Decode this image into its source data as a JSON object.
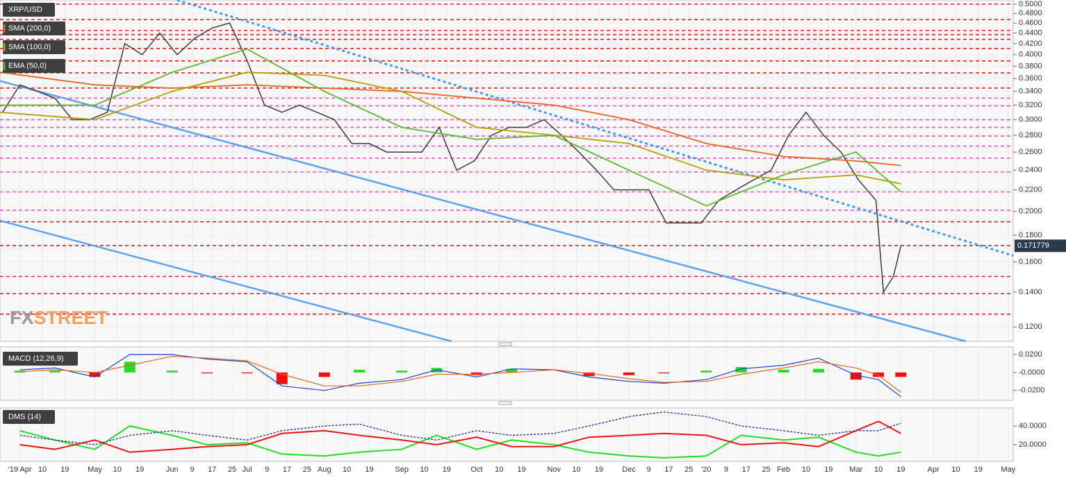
{
  "chart_data": [
    {
      "type": "line",
      "log_scale": true,
      "grid": true,
      "xlim": [
        "2019-03-24",
        "2020-05-03"
      ],
      "ylim": [
        0.1126,
        0.5093
      ],
      "yticks": [
        {
          "value": 0.5,
          "label": "0.5000"
        },
        {
          "value": 0.48,
          "label": "0.4800"
        },
        {
          "value": 0.46,
          "label": "0.4600"
        },
        {
          "value": 0.44,
          "label": "0.4400"
        },
        {
          "value": 0.42,
          "label": "0.4200"
        },
        {
          "value": 0.4,
          "label": "0.4000"
        },
        {
          "value": 0.38,
          "label": "0.3800"
        },
        {
          "value": 0.36,
          "label": "0.3600"
        },
        {
          "value": 0.34,
          "label": "0.3400"
        },
        {
          "value": 0.32,
          "label": "0.3200"
        },
        {
          "value": 0.3,
          "label": "0.3000"
        },
        {
          "value": 0.28,
          "label": "0.2800"
        },
        {
          "value": 0.26,
          "label": "0.2600"
        },
        {
          "value": 0.24,
          "label": "0.2400"
        },
        {
          "value": 0.22,
          "label": "0.2200"
        },
        {
          "value": 0.2,
          "label": "0.2000"
        },
        {
          "value": 0.18,
          "label": "0.1800"
        },
        {
          "value": 0.16,
          "label": "0.1600"
        },
        {
          "value": 0.14,
          "label": "0.1400"
        },
        {
          "value": 0.12,
          "label": "0.1200"
        }
      ],
      "series": [
        {
          "name": "XRP/USD",
          "color": "#3a3a3a",
          "x": [
            "2019-03-25",
            "2019-04-01",
            "2019-04-08",
            "2019-04-15",
            "2019-04-22",
            "2019-04-29",
            "2019-05-06",
            "2019-05-13",
            "2019-05-20",
            "2019-05-27",
            "2019-06-03",
            "2019-06-10",
            "2019-06-17",
            "2019-06-24",
            "2019-07-01",
            "2019-07-08",
            "2019-07-15",
            "2019-07-22",
            "2019-07-29",
            "2019-08-05",
            "2019-08-12",
            "2019-08-19",
            "2019-08-26",
            "2019-09-02",
            "2019-09-09",
            "2019-09-16",
            "2019-09-23",
            "2019-09-30",
            "2019-10-07",
            "2019-10-14",
            "2019-10-21",
            "2019-10-28",
            "2019-11-04",
            "2019-11-11",
            "2019-11-18",
            "2019-11-25",
            "2019-12-02",
            "2019-12-09",
            "2019-12-16",
            "2019-12-23",
            "2019-12-30",
            "2020-01-06",
            "2020-01-13",
            "2020-01-20",
            "2020-01-27",
            "2020-02-03",
            "2020-02-10",
            "2020-02-17",
            "2020-02-24",
            "2020-03-02",
            "2020-03-09",
            "2020-03-12",
            "2020-03-16",
            "2020-03-19"
          ],
          "values": [
            0.31,
            0.35,
            0.34,
            0.33,
            0.3,
            0.3,
            0.31,
            0.42,
            0.4,
            0.44,
            0.4,
            0.43,
            0.45,
            0.46,
            0.39,
            0.32,
            0.31,
            0.32,
            0.31,
            0.3,
            0.27,
            0.27,
            0.26,
            0.26,
            0.26,
            0.29,
            0.24,
            0.25,
            0.28,
            0.29,
            0.29,
            0.3,
            0.28,
            0.26,
            0.24,
            0.22,
            0.22,
            0.22,
            0.19,
            0.19,
            0.19,
            0.21,
            0.22,
            0.23,
            0.24,
            0.28,
            0.31,
            0.28,
            0.26,
            0.23,
            0.21,
            0.14,
            0.15,
            0.171779
          ]
        },
        {
          "name": "SMA (200,0)",
          "color": "#e8641b",
          "x": [
            "2019-03-24",
            "2019-05-01",
            "2019-06-01",
            "2019-07-01",
            "2019-08-01",
            "2019-09-01",
            "2019-10-01",
            "2019-11-01",
            "2019-12-01",
            "2020-01-01",
            "2020-02-01",
            "2020-03-01",
            "2020-03-19"
          ],
          "values": [
            0.37,
            0.35,
            0.345,
            0.35,
            0.345,
            0.34,
            0.33,
            0.32,
            0.3,
            0.27,
            0.255,
            0.25,
            0.245
          ]
        },
        {
          "name": "SMA (100,0)",
          "color": "#b59f00",
          "x": [
            "2019-03-24",
            "2019-05-01",
            "2019-06-01",
            "2019-07-01",
            "2019-08-01",
            "2019-09-01",
            "2019-10-01",
            "2019-11-01",
            "2019-12-01",
            "2020-01-01",
            "2020-02-01",
            "2020-03-01",
            "2020-03-19"
          ],
          "values": [
            0.31,
            0.3,
            0.34,
            0.37,
            0.365,
            0.34,
            0.29,
            0.28,
            0.27,
            0.24,
            0.23,
            0.235,
            0.226
          ]
        },
        {
          "name": "EMA (50,0)",
          "color": "#5cb82a",
          "x": [
            "2019-03-24",
            "2019-05-01",
            "2019-06-01",
            "2019-07-01",
            "2019-08-01",
            "2019-09-01",
            "2019-10-01",
            "2019-11-01",
            "2019-12-01",
            "2020-01-01",
            "2020-02-01",
            "2020-03-01",
            "2020-03-19"
          ],
          "values": [
            0.32,
            0.32,
            0.37,
            0.41,
            0.34,
            0.29,
            0.275,
            0.28,
            0.24,
            0.205,
            0.235,
            0.26,
            0.218
          ]
        }
      ],
      "levels": [
        {
          "color": "#e02020",
          "values": [
            0.5,
            0.467,
            0.445,
            0.437,
            0.428,
            0.411,
            0.389,
            0.369,
            0.345,
            0.191,
            0.172,
            0.15,
            0.139,
            0.127
          ]
        },
        {
          "color": "#f050c0",
          "values": [
            0.33,
            0.319,
            0.3,
            0.29,
            0.279,
            0.267,
            0.253,
            0.238,
            0.218,
            0.201
          ]
        }
      ],
      "trendlines": [
        {
          "color": "#3d9be9",
          "dashed": true,
          "x": [
            "2019-06-03",
            "2020-05-03"
          ],
          "values": [
            0.509,
            0.1645
          ]
        },
        {
          "color": "#5aa2ee",
          "dashed": false,
          "x": [
            "2019-03-24",
            "2020-04-14"
          ],
          "values": [
            0.356,
            0.1126
          ]
        },
        {
          "color": "#5aa2ee",
          "dashed": false,
          "x": [
            "2019-03-24",
            "2019-09-21"
          ],
          "values": [
            0.192,
            0.1126
          ]
        }
      ],
      "last_price": 0.171779,
      "watermark": [
        "FX",
        "STREET"
      ]
    },
    {
      "type": "macd",
      "title": "MACD (12,26,9)",
      "ylim": [
        -0.031,
        0.0285
      ],
      "yticks": [
        {
          "value": 0.02,
          "label": "0.0200"
        },
        {
          "value": 0,
          "label": "-0.0000"
        },
        {
          "value": -0.02,
          "label": "-0.0200"
        }
      ],
      "x": [
        "2019-04-01",
        "2019-04-15",
        "2019-05-01",
        "2019-05-15",
        "2019-06-01",
        "2019-06-15",
        "2019-07-01",
        "2019-07-15",
        "2019-08-01",
        "2019-08-15",
        "2019-09-01",
        "2019-09-15",
        "2019-10-01",
        "2019-10-15",
        "2019-11-01",
        "2019-11-15",
        "2019-12-01",
        "2019-12-15",
        "2020-01-01",
        "2020-01-15",
        "2020-02-01",
        "2020-02-15",
        "2020-03-01",
        "2020-03-10",
        "2020-03-19"
      ],
      "macd": {
        "color": "#1a3fd0",
        "values": [
          0.003,
          0.005,
          -0.005,
          0.02,
          0.02,
          0.015,
          0.012,
          -0.015,
          -0.02,
          -0.012,
          -0.008,
          0.003,
          -0.005,
          0.004,
          0.003,
          -0.005,
          -0.01,
          -0.012,
          -0.008,
          0.004,
          0.008,
          0.016,
          -0.003,
          -0.008,
          -0.027
        ]
      },
      "signal": {
        "color": "#e8641b",
        "values": [
          0.001,
          0.003,
          0.0,
          0.008,
          0.018,
          0.016,
          0.013,
          -0.002,
          -0.015,
          -0.015,
          -0.01,
          -0.002,
          -0.002,
          0.0,
          0.003,
          -0.001,
          -0.007,
          -0.011,
          -0.01,
          -0.002,
          0.005,
          0.012,
          0.005,
          -0.003,
          -0.022
        ]
      },
      "histogram": {
        "positive_color": "#22dd22",
        "negative_color": "#ee1111",
        "values": [
          0.002,
          0.002,
          -0.005,
          0.012,
          0.002,
          -0.001,
          -0.001,
          -0.013,
          -0.005,
          0.003,
          0.002,
          0.005,
          -0.003,
          0.004,
          0,
          -0.004,
          -0.003,
          -0.001,
          0.002,
          0.006,
          0.003,
          0.004,
          -0.008,
          -0.005,
          -0.005
        ]
      }
    },
    {
      "type": "dms",
      "title": "DMS (14)",
      "ylim": [
        2.2,
        59.3
      ],
      "yticks": [
        {
          "value": 40,
          "label": "40.0000"
        },
        {
          "value": 20,
          "label": "20.0000"
        }
      ],
      "x": [
        "2019-04-01",
        "2019-04-15",
        "2019-05-01",
        "2019-05-15",
        "2019-06-01",
        "2019-06-15",
        "2019-07-01",
        "2019-07-15",
        "2019-08-01",
        "2019-08-15",
        "2019-09-01",
        "2019-09-15",
        "2019-10-01",
        "2019-10-15",
        "2019-11-01",
        "2019-11-15",
        "2019-12-01",
        "2019-12-15",
        "2020-01-01",
        "2020-01-15",
        "2020-02-01",
        "2020-02-15",
        "2020-03-01",
        "2020-03-10",
        "2020-03-19"
      ],
      "series": [
        {
          "color": "#22dd22",
          "values": [
            35,
            25,
            15,
            40,
            30,
            20,
            22,
            10,
            8,
            12,
            15,
            30,
            15,
            25,
            20,
            12,
            8,
            6,
            8,
            30,
            25,
            28,
            12,
            8,
            12
          ]
        },
        {
          "color": "#ee1111",
          "values": [
            20,
            15,
            25,
            12,
            15,
            18,
            20,
            32,
            35,
            30,
            25,
            20,
            28,
            18,
            18,
            28,
            30,
            32,
            30,
            20,
            22,
            18,
            35,
            45,
            32
          ]
        },
        {
          "color": "#1a2a9a",
          "dashed": true,
          "values": [
            30,
            25,
            20,
            30,
            35,
            30,
            25,
            35,
            40,
            42,
            30,
            25,
            35,
            30,
            32,
            40,
            50,
            55,
            50,
            40,
            35,
            30,
            35,
            35,
            43
          ]
        }
      ],
      "xticks": [
        {
          "value": "2019-04-01",
          "label": "'19 Apr"
        },
        {
          "value": "2019-04-10",
          "label": "10"
        },
        {
          "value": "2019-04-19",
          "label": "19"
        },
        {
          "value": "2019-05-01",
          "label": "May"
        },
        {
          "value": "2019-05-10",
          "label": "10"
        },
        {
          "value": "2019-05-19",
          "label": "19"
        },
        {
          "value": "2019-06-01",
          "label": "Jun"
        },
        {
          "value": "2019-06-09",
          "label": "9"
        },
        {
          "value": "2019-06-17",
          "label": "17"
        },
        {
          "value": "2019-06-25",
          "label": "25"
        },
        {
          "value": "2019-07-01",
          "label": "Jul"
        },
        {
          "value": "2019-07-09",
          "label": "9"
        },
        {
          "value": "2019-07-17",
          "label": "17"
        },
        {
          "value": "2019-07-25",
          "label": "25"
        },
        {
          "value": "2019-08-01",
          "label": "Aug"
        },
        {
          "value": "2019-08-10",
          "label": "10"
        },
        {
          "value": "2019-08-19",
          "label": "19"
        },
        {
          "value": "2019-09-01",
          "label": "Sep"
        },
        {
          "value": "2019-09-10",
          "label": "10"
        },
        {
          "value": "2019-09-19",
          "label": "19"
        },
        {
          "value": "2019-10-01",
          "label": "Oct"
        },
        {
          "value": "2019-10-10",
          "label": "10"
        },
        {
          "value": "2019-10-19",
          "label": "19"
        },
        {
          "value": "2019-11-01",
          "label": "Nov"
        },
        {
          "value": "2019-11-10",
          "label": "10"
        },
        {
          "value": "2019-11-19",
          "label": "19"
        },
        {
          "value": "2019-12-01",
          "label": "Dec"
        },
        {
          "value": "2019-12-09",
          "label": "9"
        },
        {
          "value": "2019-12-17",
          "label": "17"
        },
        {
          "value": "2019-12-25",
          "label": "25"
        },
        {
          "value": "2020-01-01",
          "label": "'20"
        },
        {
          "value": "2020-01-09",
          "label": "9"
        },
        {
          "value": "2020-01-17",
          "label": "17"
        },
        {
          "value": "2020-01-25",
          "label": "25"
        },
        {
          "value": "2020-02-01",
          "label": "Feb"
        },
        {
          "value": "2020-02-10",
          "label": "10"
        },
        {
          "value": "2020-02-19",
          "label": "19"
        },
        {
          "value": "2020-03-01",
          "label": "Mar"
        },
        {
          "value": "2020-03-10",
          "label": "10"
        },
        {
          "value": "2020-03-19",
          "label": "19"
        },
        {
          "value": "2020-04-01",
          "label": "Apr"
        },
        {
          "value": "2020-04-10",
          "label": "10"
        },
        {
          "value": "2020-04-19",
          "label": "19"
        },
        {
          "value": "2020-05-01",
          "label": "May"
        }
      ]
    }
  ]
}
